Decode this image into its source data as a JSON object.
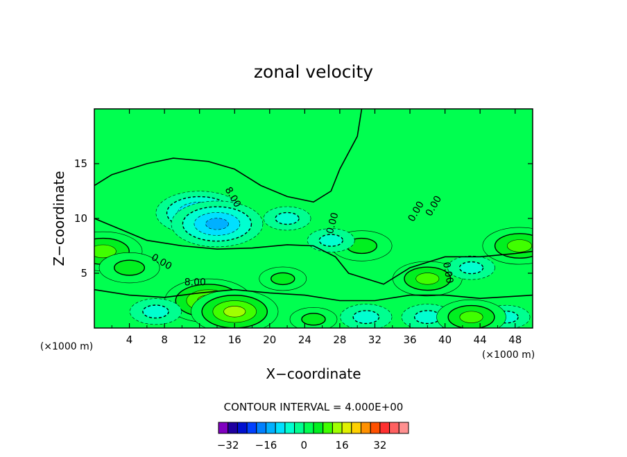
{
  "chart_data": {
    "type": "heatmap",
    "title": "zonal velocity",
    "xlabel": "X−coordinate",
    "ylabel": "Z−coordinate",
    "x_unit_label": "(×1000 m)",
    "x_unit_label_right": "(×1000 m)",
    "xlim": [
      0,
      50
    ],
    "ylim": [
      0,
      20
    ],
    "x_ticks": [
      "4",
      "8",
      "12",
      "16",
      "20",
      "24",
      "28",
      "32",
      "36",
      "40",
      "44",
      "48"
    ],
    "y_ticks": [
      "5",
      "10",
      "15"
    ],
    "contour_interval_label": "CONTOUR INTERVAL = 4.000E+00",
    "contour_labels": [
      "8.00",
      "0.00",
      "8.00",
      "0.00",
      "0.00",
      "0.00",
      "0.00"
    ],
    "colorbar": {
      "ticks": [
        "−32",
        "−16",
        "0",
        "16",
        "32"
      ],
      "tick_values": [
        -32,
        -16,
        0,
        16,
        32
      ],
      "levels_min": -36,
      "level_step": 4,
      "colors": [
        "#8000c0",
        "#2000a0",
        "#0010d0",
        "#0040ff",
        "#0080ff",
        "#00b0ff",
        "#00e0ff",
        "#00ffd0",
        "#00ff90",
        "#00ff50",
        "#00f020",
        "#40ff00",
        "#a0ff00",
        "#e0f000",
        "#ffd000",
        "#ff9000",
        "#ff5000",
        "#ff3030",
        "#ff6060",
        "#ff9090"
      ]
    },
    "field_samples": [
      {
        "x": 1,
        "z": 7,
        "u": 12
      },
      {
        "x": 4,
        "z": 5.5,
        "u": 8
      },
      {
        "x": 13,
        "z": 2.5,
        "u": 14
      },
      {
        "x": 16,
        "z": 1.5,
        "u": 14
      },
      {
        "x": 12,
        "z": 10.5,
        "u": -14
      },
      {
        "x": 14,
        "z": 9.5,
        "u": -15
      },
      {
        "x": 7,
        "z": 1.5,
        "u": -6
      },
      {
        "x": 30.5,
        "z": 7.5,
        "u": 8
      },
      {
        "x": 38,
        "z": 4.5,
        "u": 10
      },
      {
        "x": 31,
        "z": 1,
        "u": -6
      },
      {
        "x": 38,
        "z": 1,
        "u": -6
      },
      {
        "x": 43,
        "z": 5.5,
        "u": -5
      },
      {
        "x": 47,
        "z": 1,
        "u": -5
      },
      {
        "x": 48.5,
        "z": 7.5,
        "u": 11
      },
      {
        "x": 43,
        "z": 1,
        "u": 10
      },
      {
        "x": 22,
        "z": 10,
        "u": -5
      },
      {
        "x": 27,
        "z": 8,
        "u": -5
      },
      {
        "x": 21.5,
        "z": 4.5,
        "u": 5
      },
      {
        "x": 25,
        "z": 0.8,
        "u": 5
      }
    ]
  }
}
